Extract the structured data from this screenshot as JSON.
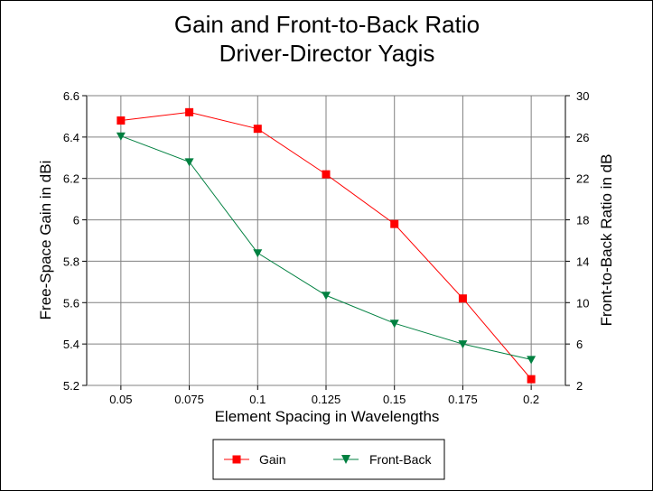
{
  "chart_data": {
    "type": "line",
    "title": "Gain and Front-to-Back Ratio",
    "subtitle": "Driver-Director Yagis",
    "xlabel": "Element Spacing in Wavelengths",
    "ylabel": "Free-Space Gain in dBi",
    "y2label": "Front-to-Back Ratio in dB",
    "categories": [
      "0.05",
      "0.075",
      "0.1",
      "0.125",
      "0.15",
      "0.175",
      "0.2"
    ],
    "x": [
      0.05,
      0.075,
      0.1,
      0.125,
      0.15,
      0.175,
      0.2
    ],
    "xlim": [
      0.0375,
      0.2125
    ],
    "ylim": [
      5.2,
      6.6
    ],
    "yticks": [
      5.2,
      5.4,
      5.6,
      5.8,
      6,
      6.2,
      6.4,
      6.6
    ],
    "y2lim": [
      2,
      30
    ],
    "y2ticks": [
      2,
      6,
      10,
      14,
      18,
      22,
      26,
      30
    ],
    "grid": true,
    "legend_position": "bottom",
    "series": [
      {
        "name": "Gain",
        "axis": "left",
        "marker": "square",
        "color": "#ff0000",
        "values": [
          6.48,
          6.52,
          6.44,
          6.22,
          5.98,
          5.62,
          5.23
        ]
      },
      {
        "name": "Front-Back",
        "axis": "right",
        "marker": "triangle-down",
        "color": "#008040",
        "values": [
          26.1,
          23.6,
          14.8,
          10.7,
          8.0,
          6.0,
          4.5
        ]
      }
    ]
  }
}
